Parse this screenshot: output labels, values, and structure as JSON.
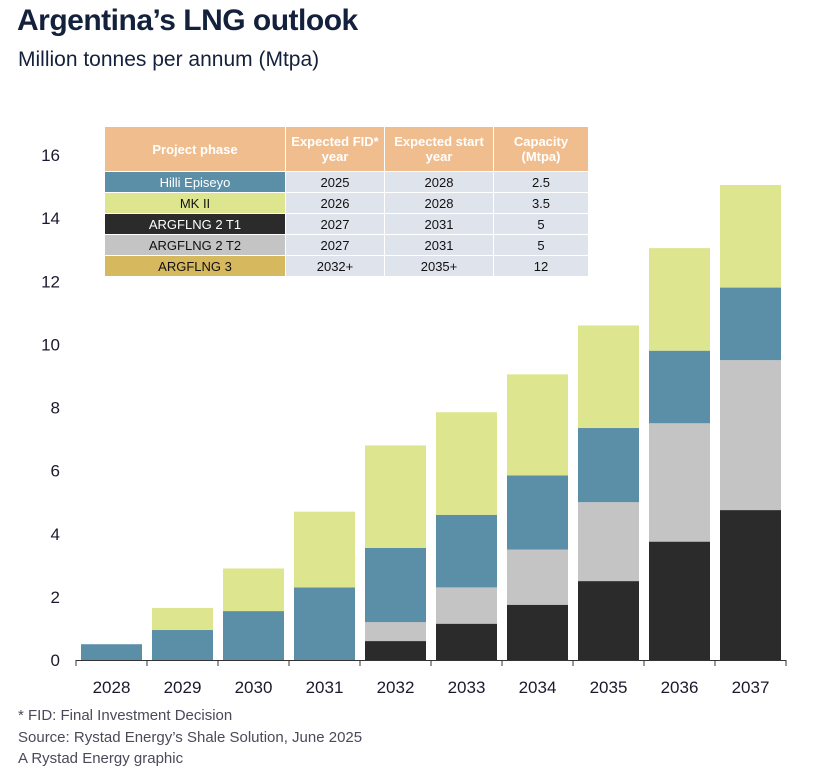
{
  "header": {
    "title": "Argentina’s LNG outlook",
    "subtitle": "Million tonnes per annum (Mtpa)"
  },
  "table": {
    "headers": [
      "Project phase",
      "Expected FID* year",
      "Expected start year",
      "Capacity (Mtpa)"
    ],
    "rows": [
      {
        "phase": "Hilli Episeyo",
        "fid": "2025",
        "start": "2028",
        "capacity": "2.5",
        "color": "#5b8fa8",
        "text_color": "#ffffff"
      },
      {
        "phase": "MK II",
        "fid": "2026",
        "start": "2028",
        "capacity": "3.5",
        "color": "#dde68e",
        "text_color": "#111111"
      },
      {
        "phase": "ARGFLNG 2 T1",
        "fid": "2027",
        "start": "2031",
        "capacity": "5",
        "color": "#2b2b2b",
        "text_color": "#ffffff"
      },
      {
        "phase": "ARGFLNG 2 T2",
        "fid": "2027",
        "start": "2031",
        "capacity": "5",
        "color": "#c4c4c4",
        "text_color": "#111111"
      },
      {
        "phase": "ARGFLNG 3",
        "fid": "2032+",
        "start": "2035+",
        "capacity": "12",
        "color": "#d6b85e",
        "text_color": "#111111"
      }
    ]
  },
  "chart_data": {
    "type": "bar",
    "stacked": true,
    "categories": [
      "2028",
      "2029",
      "2030",
      "2031",
      "2032",
      "2033",
      "2034",
      "2035",
      "2036",
      "2037"
    ],
    "ylim": [
      0,
      16
    ],
    "yticks": [
      0,
      2,
      4,
      6,
      8,
      10,
      12,
      14,
      16
    ],
    "grid": false,
    "series": [
      {
        "name": "ARGFLNG 2 T1",
        "color": "#2b2b2b",
        "values": [
          0,
          0,
          0,
          0,
          0.6,
          1.15,
          1.75,
          2.5,
          3.75,
          4.75
        ]
      },
      {
        "name": "ARGFLNG 2 T2",
        "color": "#c4c4c4",
        "values": [
          0,
          0,
          0,
          0,
          0.6,
          1.15,
          1.75,
          2.5,
          3.75,
          4.75
        ]
      },
      {
        "name": "Hilli Episeyo",
        "color": "#5b8fa8",
        "values": [
          0.5,
          0.95,
          1.55,
          2.3,
          2.35,
          2.3,
          2.35,
          2.35,
          2.3,
          2.3
        ]
      },
      {
        "name": "MK II",
        "color": "#dde68e",
        "values": [
          0,
          0.7,
          1.35,
          2.4,
          3.25,
          3.25,
          3.2,
          3.25,
          3.25,
          3.25
        ]
      }
    ]
  },
  "footer": {
    "note": "* FID: Final Investment Decision",
    "source": "Source: Rystad Energy’s Shale Solution, June 2025",
    "credit": "A Rystad Energy graphic"
  }
}
